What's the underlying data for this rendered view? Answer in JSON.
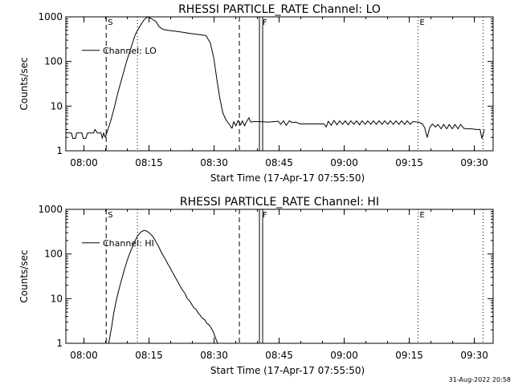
{
  "chart_data": [
    {
      "type": "line",
      "title": "RHESSI PARTICLE_RATE Channel: LO",
      "xlabel": "Start Time (17-Apr-17 07:55:50)",
      "ylabel": "Counts/sec",
      "yscale": "log",
      "ylim": [
        1,
        1000
      ],
      "xlim_minutes": [
        0,
        98.5
      ],
      "x_ticks": [
        {
          "minute": 4.17,
          "label": "08:00"
        },
        {
          "minute": 19.17,
          "label": "08:15"
        },
        {
          "minute": 34.17,
          "label": "08:30"
        },
        {
          "minute": 49.17,
          "label": "08:45"
        },
        {
          "minute": 64.17,
          "label": "09:00"
        },
        {
          "minute": 79.17,
          "label": "09:15"
        },
        {
          "minute": 94.17,
          "label": "09:30"
        }
      ],
      "y_ticks": [
        {
          "value": 1,
          "label": "1"
        },
        {
          "value": 10,
          "label": "10"
        },
        {
          "value": 100,
          "label": "100"
        },
        {
          "value": 1000,
          "label": "1000"
        }
      ],
      "legend": {
        "label": "Channel: LO",
        "position": "top-left"
      },
      "markers": [
        {
          "minute": 9.3,
          "style": "dashed",
          "label": "S"
        },
        {
          "minute": 16.5,
          "style": "dotted",
          "label": ""
        },
        {
          "minute": 40.0,
          "style": "dashed",
          "label": ""
        },
        {
          "minute": 45.0,
          "style": "double",
          "label": "F"
        },
        {
          "minute": 81.2,
          "style": "dotted",
          "label": "E"
        },
        {
          "minute": 96.2,
          "style": "dotted",
          "label": ""
        }
      ],
      "series": [
        {
          "name": "Channel: LO",
          "points": [
            [
              0,
              2.5
            ],
            [
              1.3,
              2.5
            ],
            [
              1.6,
              1.9
            ],
            [
              2.2,
              1.9
            ],
            [
              2.5,
              2.5
            ],
            [
              3.7,
              2.5
            ],
            [
              4,
              1.9
            ],
            [
              4.6,
              1.9
            ],
            [
              5,
              2.5
            ],
            [
              6.4,
              2.5
            ],
            [
              6.7,
              3
            ],
            [
              7.3,
              2.5
            ],
            [
              8.1,
              2.5
            ],
            [
              8.4,
              1.9
            ],
            [
              8.7,
              2.5
            ],
            [
              9.1,
              2.0
            ],
            [
              9.6,
              2.8
            ],
            [
              10.3,
              4.5
            ],
            [
              11,
              8
            ],
            [
              12,
              20
            ],
            [
              13,
              45
            ],
            [
              14,
              100
            ],
            [
              15,
              200
            ],
            [
              16,
              400
            ],
            [
              17,
              600
            ],
            [
              18,
              850
            ],
            [
              18.8,
              1000
            ],
            [
              19.8,
              900
            ],
            [
              20.7,
              800
            ],
            [
              21.5,
              600
            ],
            [
              22.5,
              520
            ],
            [
              23.5,
              500
            ],
            [
              25,
              480
            ],
            [
              27,
              450
            ],
            [
              29,
              420
            ],
            [
              31,
              400
            ],
            [
              32.3,
              380
            ],
            [
              33.3,
              260
            ],
            [
              34.1,
              120
            ],
            [
              34.8,
              40
            ],
            [
              35.5,
              15
            ],
            [
              36.2,
              7
            ],
            [
              37,
              4.8
            ],
            [
              37.6,
              4.0
            ],
            [
              38.3,
              3.2
            ],
            [
              38.7,
              4.5
            ],
            [
              39.2,
              3.6
            ],
            [
              39.7,
              4.8
            ],
            [
              40.3,
              3.8
            ],
            [
              40.7,
              4.7
            ],
            [
              41.2,
              3.6
            ],
            [
              41.6,
              4.4
            ],
            [
              42.2,
              5.5
            ],
            [
              42.6,
              4.4
            ],
            [
              43.2,
              4.5
            ],
            [
              45,
              4.5
            ],
            [
              46.5,
              4.4
            ],
            [
              48,
              4.5
            ],
            [
              49,
              4.6
            ],
            [
              49.5,
              3.9
            ],
            [
              50.2,
              4.7
            ],
            [
              50.8,
              3.7
            ],
            [
              51.5,
              4.7
            ],
            [
              52.1,
              4.3
            ],
            [
              53,
              4.4
            ],
            [
              54,
              4.0
            ],
            [
              56,
              4.0
            ],
            [
              58,
              4.0
            ],
            [
              59.5,
              4.0
            ],
            [
              60,
              3.4
            ],
            [
              60.5,
              4.6
            ],
            [
              61.2,
              3.7
            ],
            [
              61.8,
              4.8
            ],
            [
              62.5,
              3.8
            ],
            [
              63.1,
              4.7
            ],
            [
              63.8,
              3.9
            ],
            [
              64.4,
              4.7
            ],
            [
              65.1,
              3.8
            ],
            [
              65.7,
              4.7
            ],
            [
              66.4,
              3.9
            ],
            [
              67,
              4.7
            ],
            [
              67.7,
              3.8
            ],
            [
              68.3,
              4.7
            ],
            [
              69,
              3.9
            ],
            [
              69.6,
              4.7
            ],
            [
              70.3,
              3.9
            ],
            [
              70.9,
              4.7
            ],
            [
              71.6,
              3.9
            ],
            [
              72.2,
              4.7
            ],
            [
              72.9,
              3.9
            ],
            [
              73.5,
              4.7
            ],
            [
              74.2,
              3.9
            ],
            [
              74.8,
              4.7
            ],
            [
              75.5,
              3.9
            ],
            [
              76.1,
              4.7
            ],
            [
              76.8,
              3.9
            ],
            [
              77.4,
              4.7
            ],
            [
              78.1,
              3.9
            ],
            [
              78.7,
              4.7
            ],
            [
              79.4,
              3.9
            ],
            [
              80,
              4.5
            ],
            [
              81.3,
              4.4
            ],
            [
              82.2,
              4.0
            ],
            [
              82.7,
              3.3
            ],
            [
              83.3,
              2.0
            ],
            [
              83.9,
              3.3
            ],
            [
              84.5,
              4.0
            ],
            [
              85.2,
              3.4
            ],
            [
              85.8,
              3.9
            ],
            [
              86.5,
              3.1
            ],
            [
              87.1,
              3.9
            ],
            [
              87.8,
              3.1
            ],
            [
              88.4,
              3.9
            ],
            [
              89.1,
              3.1
            ],
            [
              89.7,
              3.9
            ],
            [
              90.4,
              3.1
            ],
            [
              91,
              3.9
            ],
            [
              91.7,
              3.2
            ],
            [
              92.3,
              3.1
            ],
            [
              93.5,
              3.1
            ],
            [
              94.5,
              3.0
            ],
            [
              95.5,
              3.0
            ],
            [
              95.9,
              1.9
            ],
            [
              96.5,
              3.0
            ]
          ]
        }
      ]
    },
    {
      "type": "line",
      "title": "RHESSI PARTICLE_RATE Channel: HI",
      "xlabel": "Start Time (17-Apr-17 07:55:50)",
      "ylabel": "Counts/sec",
      "yscale": "log",
      "ylim": [
        1,
        1000
      ],
      "xlim_minutes": [
        0,
        98.5
      ],
      "x_ticks": [
        {
          "minute": 4.17,
          "label": "08:00"
        },
        {
          "minute": 19.17,
          "label": "08:15"
        },
        {
          "minute": 34.17,
          "label": "08:30"
        },
        {
          "minute": 49.17,
          "label": "08:45"
        },
        {
          "minute": 64.17,
          "label": "09:00"
        },
        {
          "minute": 79.17,
          "label": "09:15"
        },
        {
          "minute": 94.17,
          "label": "09:30"
        }
      ],
      "y_ticks": [
        {
          "value": 1,
          "label": "1"
        },
        {
          "value": 10,
          "label": "10"
        },
        {
          "value": 100,
          "label": "100"
        },
        {
          "value": 1000,
          "label": "1000"
        }
      ],
      "legend": {
        "label": "Channel: HI",
        "position": "top-left"
      },
      "markers": [
        {
          "minute": 9.3,
          "style": "dashed",
          "label": "S"
        },
        {
          "minute": 16.5,
          "style": "dotted",
          "label": ""
        },
        {
          "minute": 40.0,
          "style": "dashed",
          "label": ""
        },
        {
          "minute": 45.0,
          "style": "double",
          "label": "F"
        },
        {
          "minute": 81.2,
          "style": "dotted",
          "label": "E"
        },
        {
          "minute": 96.2,
          "style": "dotted",
          "label": ""
        }
      ],
      "series": [
        {
          "name": "Channel: HI",
          "points": [
            [
              9.9,
              1.0
            ],
            [
              10.2,
              1.5
            ],
            [
              10.6,
              2.5
            ],
            [
              11,
              4.5
            ],
            [
              11.5,
              8
            ],
            [
              12,
              13
            ],
            [
              12.5,
              20
            ],
            [
              13,
              30
            ],
            [
              13.5,
              45
            ],
            [
              14,
              65
            ],
            [
              14.5,
              90
            ],
            [
              15,
              120
            ],
            [
              15.5,
              160
            ],
            [
              16,
              200
            ],
            [
              16.5,
              250
            ],
            [
              17,
              290
            ],
            [
              17.5,
              320
            ],
            [
              18,
              335
            ],
            [
              18.5,
              330
            ],
            [
              19,
              310
            ],
            [
              19.5,
              280
            ],
            [
              20,
              250
            ],
            [
              20.5,
              210
            ],
            [
              21,
              170
            ],
            [
              21.5,
              140
            ],
            [
              22,
              110
            ],
            [
              22.5,
              90
            ],
            [
              23,
              75
            ],
            [
              23.5,
              60
            ],
            [
              24,
              50
            ],
            [
              24.5,
              40
            ],
            [
              25,
              33
            ],
            [
              25.5,
              27
            ],
            [
              26,
              22
            ],
            [
              26.5,
              18
            ],
            [
              27,
              15
            ],
            [
              27.5,
              13
            ],
            [
              28,
              10
            ],
            [
              28.5,
              9
            ],
            [
              29,
              7.5
            ],
            [
              29.5,
              6.3
            ],
            [
              30,
              5.8
            ],
            [
              30.5,
              4.8
            ],
            [
              31,
              4.2
            ],
            [
              31.5,
              3.6
            ],
            [
              32,
              3.4
            ],
            [
              32.5,
              2.8
            ],
            [
              33,
              2.6
            ],
            [
              33.5,
              2.2
            ],
            [
              34,
              1.8
            ],
            [
              34.4,
              1.4
            ],
            [
              34.8,
              1.1
            ],
            [
              35,
              1.0
            ]
          ]
        }
      ]
    }
  ],
  "footer": {
    "timestamp": "31-Aug-2022 20:58"
  }
}
